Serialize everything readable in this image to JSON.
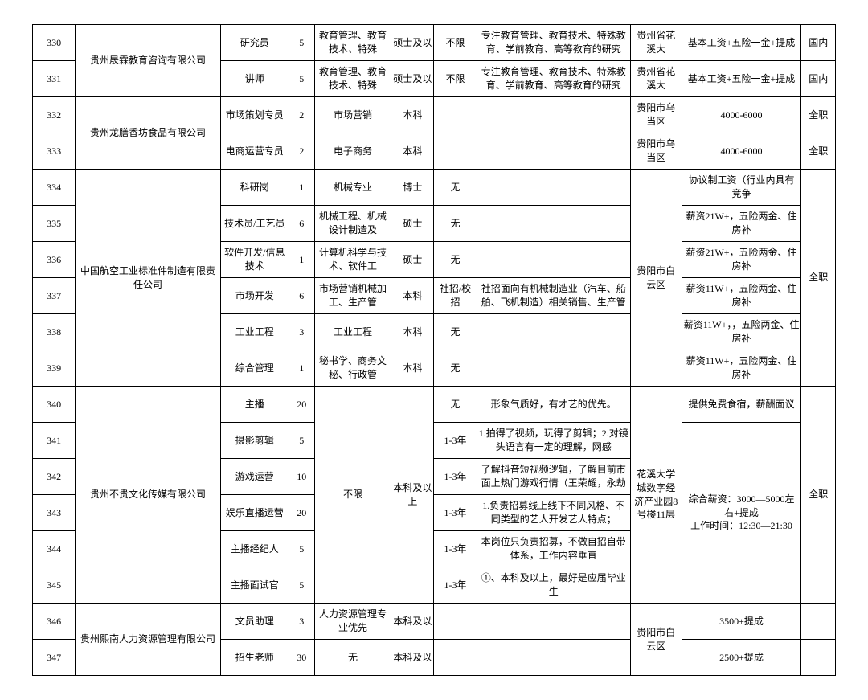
{
  "rows": [
    {
      "idx": "330",
      "position": "研究员",
      "count": "5",
      "major": "教育管理、教育技术、特殊",
      "edu": "硕士及以",
      "exp": "不限",
      "note": "专注教育管理、教育技术、特殊教育、学前教育、高等教育的研究",
      "loc": "贵州省花溪大",
      "salary": "基本工资+五险一金+提成",
      "type": "国内"
    },
    {
      "idx": "331",
      "position": "讲师",
      "count": "5",
      "major": "教育管理、教育技术、特殊",
      "edu": "硕士及以",
      "exp": "不限",
      "note": "专注教育管理、教育技术、特殊教育、学前教育、高等教育的研究",
      "loc": "贵州省花溪大",
      "salary": "基本工资+五险一金+提成",
      "type": "国内"
    },
    {
      "idx": "332",
      "position": "市场策划专员",
      "count": "2",
      "major": "市场营销",
      "edu": "本科",
      "exp": "",
      "note": "",
      "loc": "贵阳市乌当区",
      "salary": "4000-6000",
      "type": "全职"
    },
    {
      "idx": "333",
      "position": "电商运营专员",
      "count": "2",
      "major": "电子商务",
      "edu": "本科",
      "exp": "",
      "note": "",
      "loc": "贵阳市乌当区",
      "salary": "4000-6000",
      "type": "全职"
    },
    {
      "idx": "334",
      "position": "科研岗",
      "count": "1",
      "major": "机械专业",
      "edu": "博士",
      "exp": "无",
      "note": "",
      "salary": "协议制工资（行业内具有竞争"
    },
    {
      "idx": "335",
      "position": "技术员/工艺员",
      "count": "6",
      "major": "机械工程、机械设计制造及",
      "edu": "硕士",
      "exp": "无",
      "note": "",
      "salary": "薪资21W+，五险两金、住房补"
    },
    {
      "idx": "336",
      "position": "软件开发/信息技术",
      "count": "1",
      "major": "计算机科学与技术、软件工",
      "edu": "硕士",
      "exp": "无",
      "note": "",
      "salary": "薪资21W+，五险两金、住房补"
    },
    {
      "idx": "337",
      "position": "市场开发",
      "count": "6",
      "major": "市场营销机械加工、生产管",
      "edu": "本科",
      "exp": "社招/校招",
      "note": "社招面向有机械制造业（汽车、船舶、飞机制造）相关销售、生产管",
      "salary": "薪资11W+，五险两金、住房补"
    },
    {
      "idx": "338",
      "position": "工业工程",
      "count": "3",
      "major": "工业工程",
      "edu": "本科",
      "exp": "无",
      "note": "",
      "salary": "薪资11W+，，五险两金、住房补"
    },
    {
      "idx": "339",
      "position": "综合管理",
      "count": "1",
      "major": "秘书学、商务文秘、行政管",
      "edu": "本科",
      "exp": "无",
      "note": "",
      "salary": "薪资11W+，五险两金、住房补"
    },
    {
      "idx": "340",
      "position": "主播",
      "count": "20",
      "exp": "无",
      "note": "形象气质好，有才艺的优先。",
      "salary": "提供免费食宿，薪酬面议"
    },
    {
      "idx": "341",
      "position": "摄影剪辑",
      "count": "5",
      "exp": "1-3年",
      "note": "1.拍得了视频，玩得了剪辑；2.对镜头语言有一定的理解，网感"
    },
    {
      "idx": "342",
      "position": "游戏运营",
      "count": "10",
      "exp": "1-3年",
      "note": "了解抖音短视频逻辑，了解目前市面上热门游戏行情（王荣耀，永劫"
    },
    {
      "idx": "343",
      "position": "娱乐直播运营",
      "count": "20",
      "exp": "1-3年",
      "note": "1.负责招募线上线下不同风格、不同类型的艺人开发艺人特点；"
    },
    {
      "idx": "344",
      "position": "主播经纪人",
      "count": "5",
      "exp": "1-3年",
      "note": "本岗位只负责招募，不做自招自带体系，工作内容垂直"
    },
    {
      "idx": "345",
      "position": "主播面试官",
      "count": "5",
      "exp": "1-3年",
      "note": "①、本科及以上，最好是应届毕业生"
    },
    {
      "idx": "346",
      "position": "文员助理",
      "count": "3",
      "major": "人力资源管理专业优先",
      "edu": "本科及以",
      "exp": "",
      "note": "",
      "salary": "3500+提成",
      "type": ""
    },
    {
      "idx": "347",
      "position": "招生老师",
      "count": "30",
      "major": "无",
      "edu": "本科及以",
      "exp": "",
      "note": "",
      "salary": "2500+提成",
      "type": ""
    }
  ],
  "companies": {
    "c1": "贵州晟霖教育咨询有限公司",
    "c2": "贵州龙膳香坊食品有限公司",
    "c3": "中国航空工业标准件制造有限责任公司",
    "c4": "贵州不贵文化传媒有限公司",
    "c5": "贵州熙南人力资源管理有限公司"
  },
  "merged": {
    "c3_loc": "贵阳市白云区",
    "c3_type": "全职",
    "c4_major": "不限",
    "c4_edu": "本科及以上",
    "c4_loc": "花溪大学城数字经济产业园8号楼11层",
    "c4_sal": "综合薪资：3000—5000左右+提成\n工作时间：12:30—21:30",
    "c4_type": "全职",
    "c5_loc": "贵阳市白云区"
  }
}
